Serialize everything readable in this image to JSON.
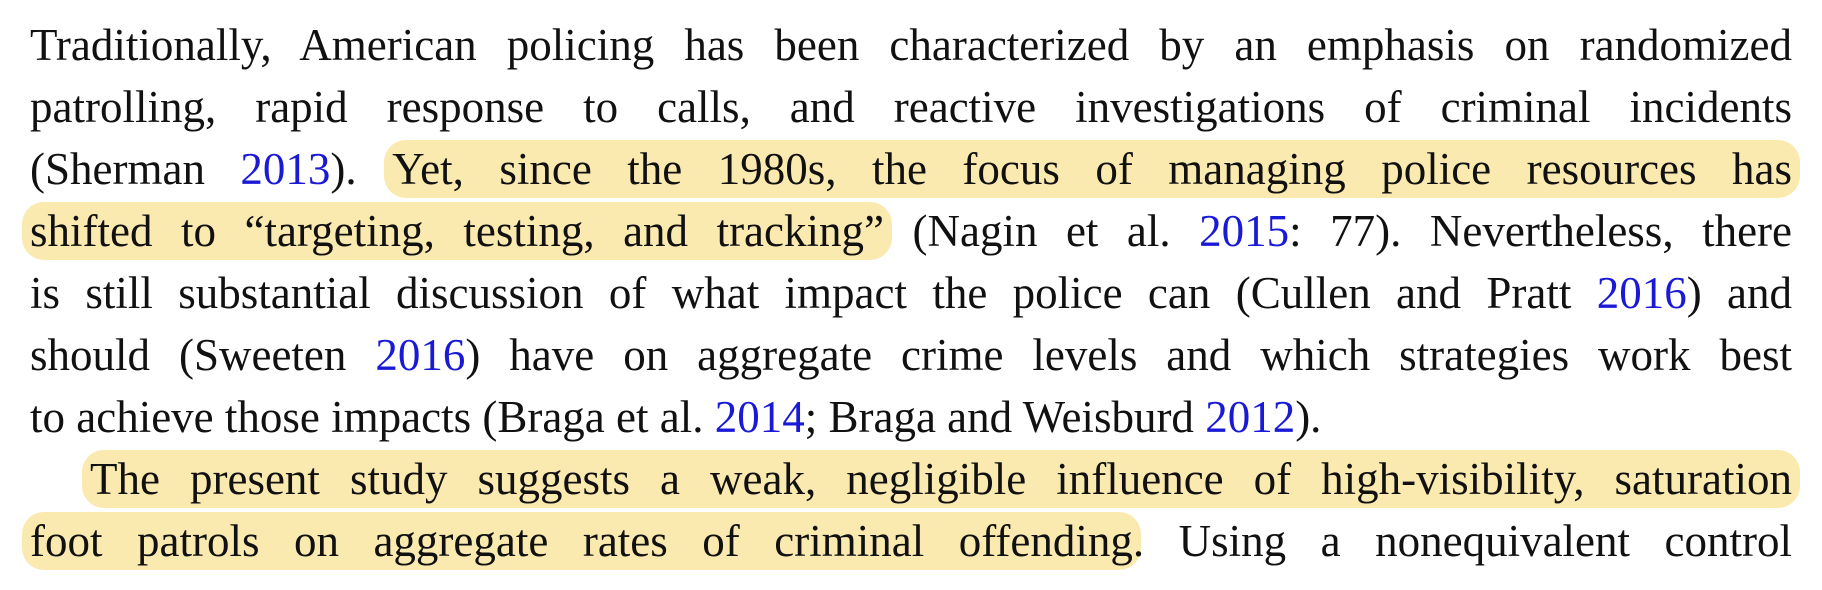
{
  "paragraph1": {
    "line1": {
      "text": "Traditionally, American policing has been characterized by an emphasis on randomized"
    },
    "line2": {
      "text": "patrolling, rapid response to calls, and reactive investigations of criminal incidents"
    },
    "line3": {
      "pre": "(Sherman ",
      "cite": "2013",
      "post": "). ",
      "highlight": "Yet, since the 1980s, the focus of managing police resources has"
    },
    "line4": {
      "highlight": "shifted to “targeting, testing, and tracking”",
      "pre": " (Nagin et al. ",
      "cite": "2015",
      "post": ": 77). Nevertheless, there"
    },
    "line5": {
      "pre": "is still substantial discussion of what impact the police can (Cullen and Pratt ",
      "cite": "2016",
      "post": ") and"
    },
    "line6": {
      "pre": "should (Sweeten ",
      "cite": "2016",
      "post": ") have on aggregate crime levels and which strategies work best"
    },
    "line7": {
      "pre": "to achieve those impacts (Braga et al. ",
      "cite1": "2014",
      "mid": "; Braga and Weisburd ",
      "cite2": "2012",
      "post": ")."
    }
  },
  "paragraph2": {
    "line1": {
      "highlight": "The present study suggests a weak, negligible influence of high-visibility, saturation"
    },
    "line2": {
      "highlight": "foot patrols on aggregate rates of criminal offending",
      "post": ". Using a nonequivalent control"
    }
  },
  "colors": {
    "text": "#111111",
    "citation": "#1a1ad6",
    "highlight": "#fbeab0"
  }
}
